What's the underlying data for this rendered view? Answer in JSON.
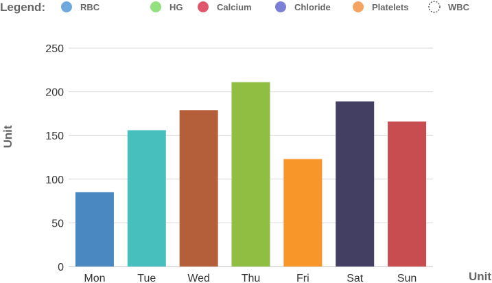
{
  "legend": {
    "title": "Legend:",
    "items": [
      {
        "name": "RBC",
        "color": "#6fa8dc",
        "style": "filled"
      },
      {
        "name": "HG",
        "color": "#93e07f",
        "style": "filled"
      },
      {
        "name": "Calcium",
        "color": "#e0566c",
        "style": "filled"
      },
      {
        "name": "Chloride",
        "color": "#7c7fd8",
        "style": "filled"
      },
      {
        "name": "Platelets",
        "color": "#f4a462",
        "style": "filled"
      },
      {
        "name": "WBC",
        "color": "#333333",
        "style": "dashed"
      }
    ]
  },
  "chart_data": {
    "type": "bar",
    "categories": [
      "Mon",
      "Tue",
      "Wed",
      "Thu",
      "Fri",
      "Sat",
      "Sun"
    ],
    "values": [
      85,
      156,
      179,
      211,
      123,
      189,
      166
    ],
    "bar_colors": [
      "#4a88c2",
      "#47bfbc",
      "#b45f3a",
      "#8fbe42",
      "#f8962a",
      "#423f63",
      "#c84d50"
    ],
    "xlabel": "Unit",
    "ylabel": "Unit",
    "ylim": [
      0,
      250
    ],
    "yticks": [
      0,
      50,
      100,
      150,
      200,
      250
    ],
    "grid": true,
    "legend_position": "top"
  }
}
